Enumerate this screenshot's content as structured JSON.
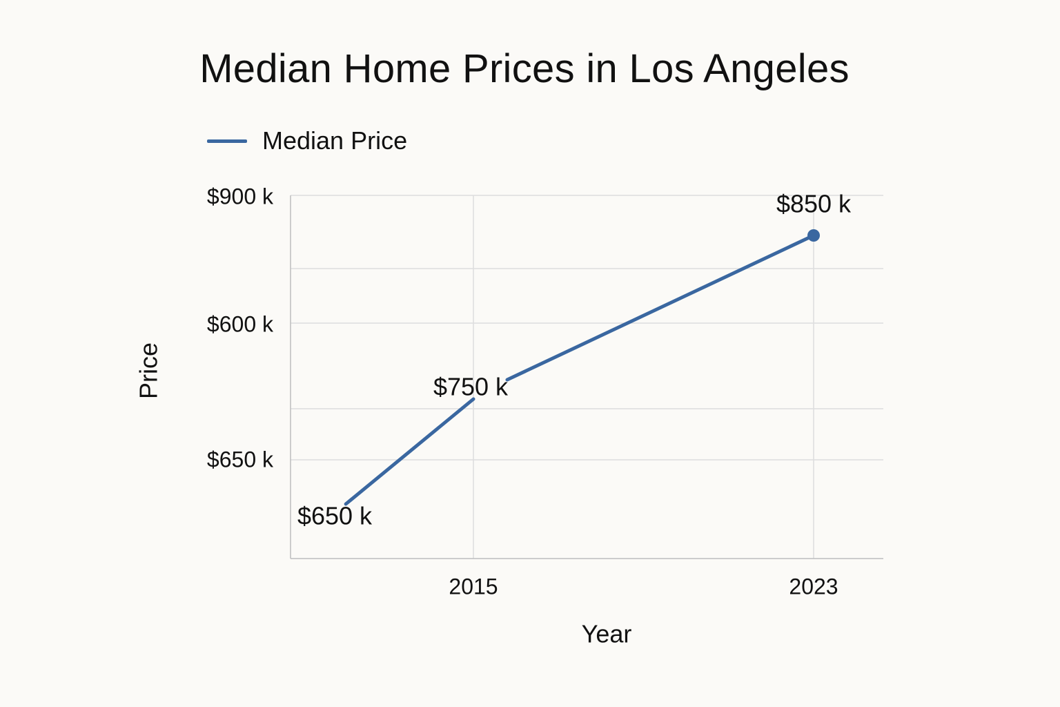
{
  "chart_data": {
    "type": "line",
    "title": "Median Home Prices in Los Angeles",
    "xlabel": "Year",
    "ylabel": "Price",
    "legend": "top-left",
    "grid": true,
    "x_tick_labels": [
      "2015",
      "2023"
    ],
    "y_tick_labels": [
      "$900 k",
      "$600 k",
      "$650 k"
    ],
    "series": [
      {
        "name": "Median Price",
        "color": "#3a67a0",
        "points": [
          {
            "x": "2012",
            "y": 650,
            "label": "$650 k"
          },
          {
            "x": "2015",
            "y": 750,
            "label": "$750 k"
          },
          {
            "x": "2023",
            "y": 850,
            "label": "$850 k"
          }
        ]
      }
    ]
  }
}
